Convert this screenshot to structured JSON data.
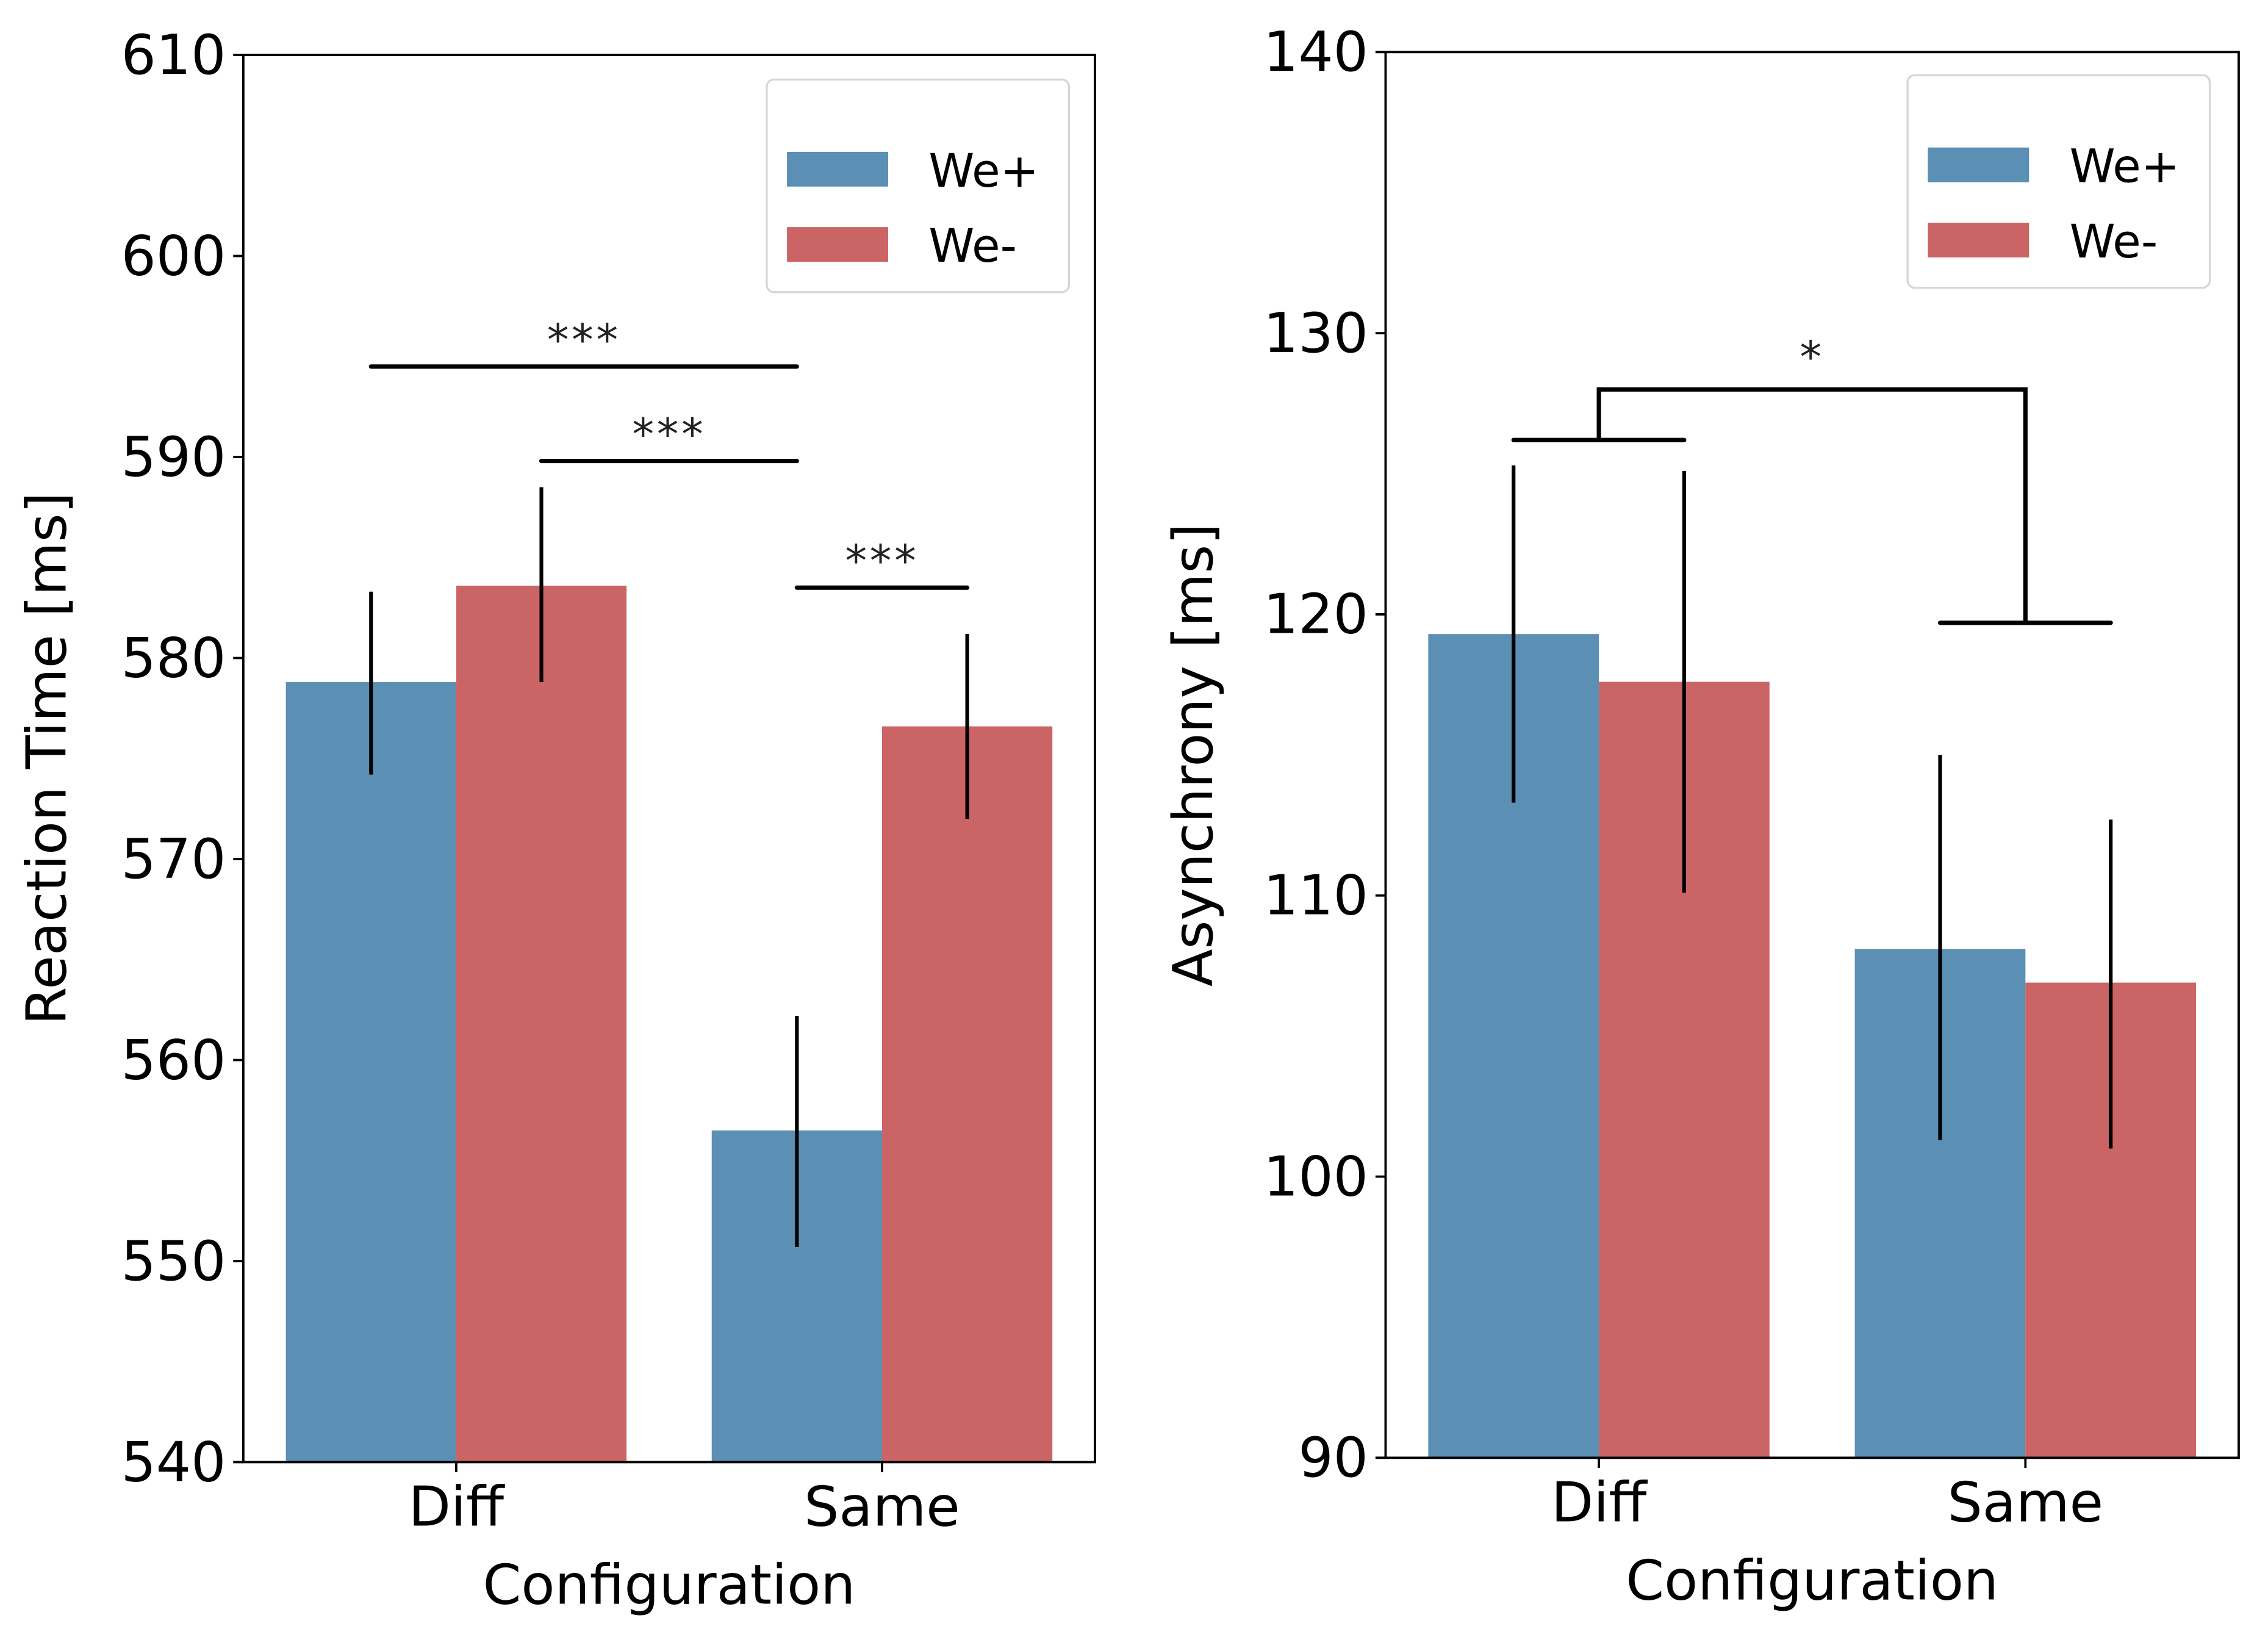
{
  "chart_data": [
    {
      "type": "bar",
      "title": "",
      "xlabel": "Configuration",
      "ylabel": "Reaction Time [ms]",
      "categories": [
        "Diff",
        "Same"
      ],
      "ylim": [
        540,
        610
      ],
      "yticks": [
        540,
        550,
        560,
        570,
        580,
        590,
        600,
        610
      ],
      "grid": false,
      "legend_position": "top-right",
      "series": [
        {
          "name": "We+",
          "color": "#5b8fb4",
          "values": [
            578.8,
            556.5
          ],
          "err_low": [
            574.2,
            550.7
          ],
          "err_high": [
            583.3,
            562.2
          ]
        },
        {
          "name": "We-",
          "color": "#cb6565",
          "values": [
            583.6,
            576.6
          ],
          "err_low": [
            578.8,
            572.0
          ],
          "err_high": [
            588.5,
            581.2
          ]
        }
      ],
      "annotations": [
        {
          "type": "line",
          "from": {
            "category": "Diff",
            "series": "We+"
          },
          "to": {
            "category": "Same",
            "series": "We+"
          },
          "y": 594.5,
          "label": "***"
        },
        {
          "type": "line",
          "from": {
            "category": "Diff",
            "series": "We-"
          },
          "to": {
            "category": "Same",
            "series": "We+"
          },
          "y": 589.8,
          "label": "***"
        },
        {
          "type": "line",
          "from": {
            "category": "Same",
            "series": "We+"
          },
          "to": {
            "category": "Same",
            "series": "We-"
          },
          "y": 583.5,
          "label": "***"
        }
      ]
    },
    {
      "type": "bar",
      "title": "",
      "xlabel": "Configuration",
      "ylabel": "Asynchrony [ms]",
      "categories": [
        "Diff",
        "Same"
      ],
      "ylim": [
        90,
        140
      ],
      "yticks": [
        90,
        100,
        110,
        120,
        130,
        140
      ],
      "grid": false,
      "legend_position": "top-right",
      "series": [
        {
          "name": "We+",
          "color": "#5b8fb4",
          "values": [
            119.3,
            108.1
          ],
          "err_low": [
            113.3,
            101.3
          ],
          "err_high": [
            125.3,
            115.0
          ]
        },
        {
          "name": "We-",
          "color": "#cb6565",
          "values": [
            117.6,
            106.9
          ],
          "err_low": [
            110.1,
            101.0
          ],
          "err_high": [
            125.1,
            112.7
          ]
        }
      ],
      "annotations": [
        {
          "type": "bracket",
          "left_group": "Diff",
          "left_y": 126.2,
          "right_group": "Same",
          "right_y": 119.7,
          "top_y": 128.0,
          "label": "*"
        }
      ]
    }
  ]
}
